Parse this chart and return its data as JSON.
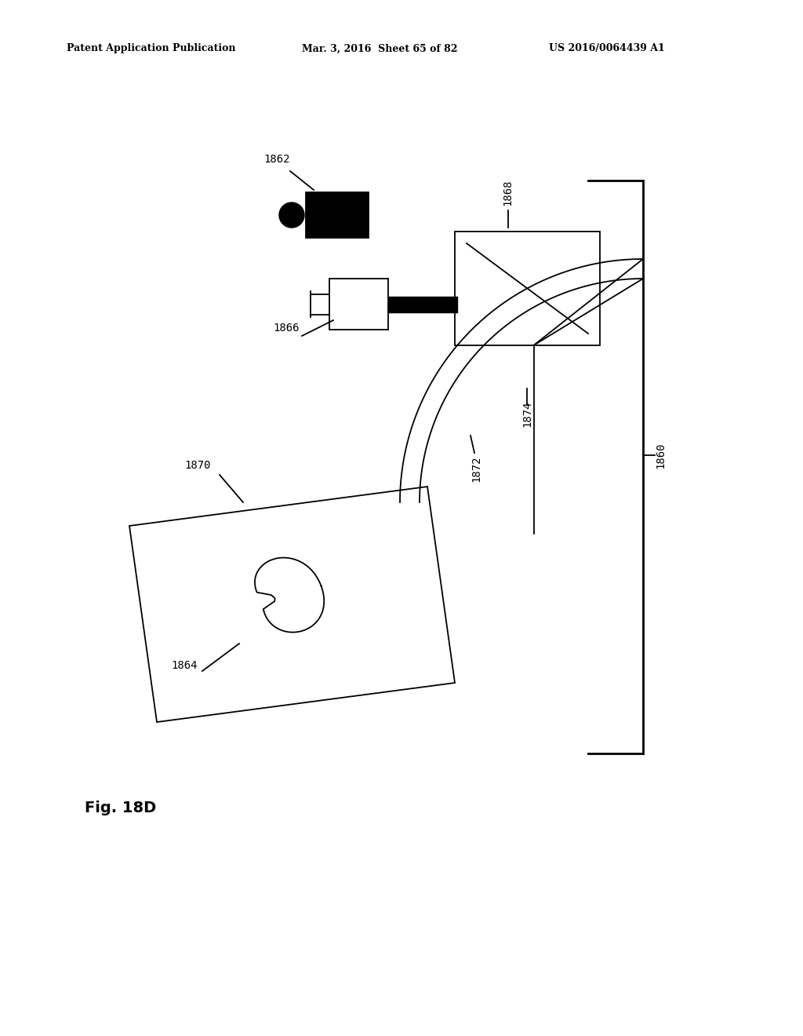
{
  "bg_color": "#ffffff",
  "line_color": "#000000",
  "header_left": "Patent Application Publication",
  "header_mid": "Mar. 3, 2016  Sheet 65 of 82",
  "header_right": "US 2016/0064439 A1",
  "fig_label": "Fig. 18D"
}
